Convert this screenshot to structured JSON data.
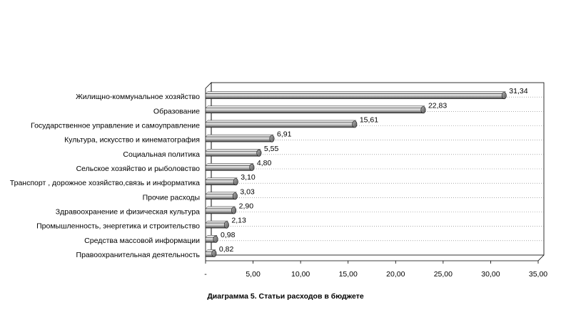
{
  "chart_data": {
    "type": "bar",
    "orientation": "horizontal",
    "title": "Диаграмма 5. Статьи расходов в бюджете",
    "categories": [
      "Жилищно-коммунальное хозяйство",
      "Образование",
      "Государственное управление и самоуправление",
      "Культура, искусство и кинематография",
      "Социальная политика",
      "Сельское хозяйство и рыболовство",
      "Транспорт , дорожное хозяйство,связь и информатика",
      "Прочие расходы",
      "Здравоохранение и физическая культура",
      "Промышленность, энергетика и строительство",
      "Средства массовой информации",
      "Правоохранительная деятельность"
    ],
    "values": [
      31.34,
      22.83,
      15.61,
      6.91,
      5.55,
      4.8,
      3.1,
      3.03,
      2.9,
      2.13,
      0.98,
      0.82
    ],
    "value_labels": [
      "31,34",
      "22,83",
      "15,61",
      "6,91",
      "5,55",
      "4,80",
      "3,10",
      "3,03",
      "2,90",
      "2,13",
      "0,98",
      "0,82"
    ],
    "xlim": [
      0,
      35
    ],
    "x_ticks": [
      0,
      5,
      10,
      15,
      20,
      25,
      30,
      35
    ],
    "x_tick_labels": [
      "-",
      "5,00",
      "10,00",
      "15,00",
      "20,00",
      "25,00",
      "30,00",
      "35,00"
    ],
    "xlabel": "",
    "ylabel": "",
    "grid": true,
    "legend": "none",
    "bar_color": "#8a8a8a",
    "style": "3d-cylinder"
  }
}
